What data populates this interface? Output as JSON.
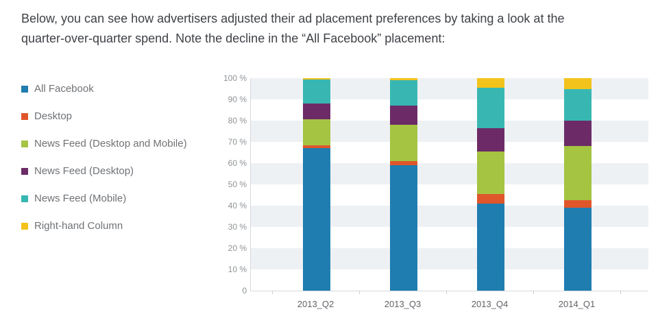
{
  "intro": {
    "line1": "Below, you can see how advertisers adjusted their ad placement preferences by taking a look at the",
    "line2": "quarter-over-quarter spend. Note the decline in the “All Facebook” placement:"
  },
  "chart_data": {
    "type": "bar",
    "subtype": "stacked-percentage-column",
    "title": "",
    "xlabel": "",
    "ylabel": "",
    "ylim": [
      0,
      100
    ],
    "grid": "horizontal-bands",
    "legend_position": "left",
    "categories": [
      "2013_Q2",
      "2013_Q3",
      "2013_Q4",
      "2014_Q1"
    ],
    "yticks": [
      "100 %",
      "90 %",
      "80 %",
      "70 %",
      "60 %",
      "50 %",
      "40 %",
      "30 %",
      "20 %",
      "10 %",
      "0"
    ],
    "series": [
      {
        "name": "All Facebook",
        "color": "#1f7db0",
        "values": [
          67,
          59,
          41,
          39
        ]
      },
      {
        "name": "Desktop",
        "color": "#e0562b",
        "values": [
          1.5,
          2,
          4.5,
          3.5
        ]
      },
      {
        "name": "News Feed (Desktop and Mobile)",
        "color": "#a4c442",
        "values": [
          12,
          17,
          20,
          25.5
        ]
      },
      {
        "name": "News Feed (Desktop)",
        "color": "#6c2b67",
        "values": [
          7.5,
          9,
          11,
          12
        ]
      },
      {
        "name": "News Feed (Mobile)",
        "color": "#38b7b2",
        "values": [
          11.5,
          12,
          19,
          15
        ]
      },
      {
        "name": "Right-hand Column",
        "color": "#f3c31c",
        "values": [
          0.5,
          1,
          4.5,
          5
        ]
      }
    ]
  },
  "colors": {
    "band": "#eef1f4",
    "axis_line": "#d5dade",
    "axis_text": "#8f9397"
  }
}
